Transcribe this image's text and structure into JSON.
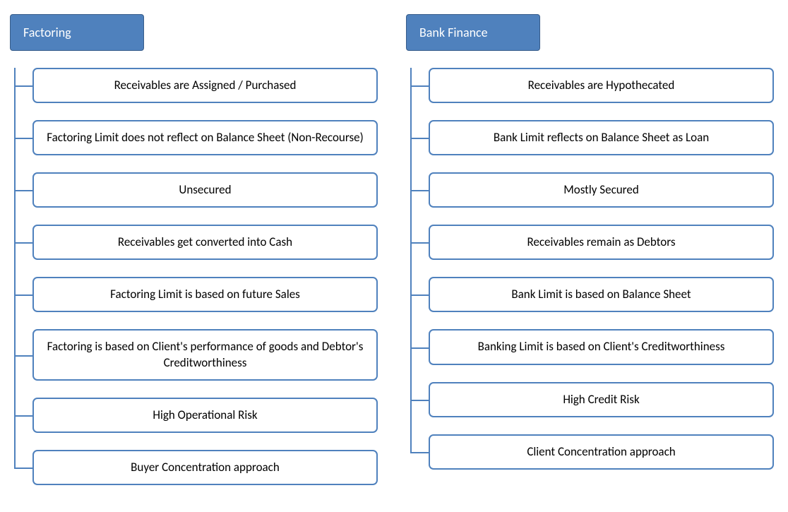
{
  "diagram": {
    "type": "comparison-tree",
    "header_color": "#4f81bd",
    "header_text_color": "#ffffff",
    "item_border_color": "#4f81bd",
    "item_bg_color": "#ffffff",
    "item_text_color": "#000000",
    "connector_color": "#4f81bd",
    "border_radius": 7,
    "font_family": "Calibri",
    "header_fontsize": 18,
    "item_fontsize": 17,
    "columns": [
      {
        "title": "Factoring",
        "items": [
          "Receivables are Assigned / Purchased",
          "Factoring Limit does not reflect on Balance Sheet (Non-Recourse)",
          "Unsecured",
          "Receivables get converted into Cash",
          "Factoring Limit is based on future Sales",
          "Factoring is based on Client's performance of goods and Debtor's Creditworthiness",
          "High Operational Risk",
          "Buyer Concentration approach"
        ]
      },
      {
        "title": "Bank Finance",
        "items": [
          "Receivables are Hypothecated",
          "Bank Limit reflects on Balance Sheet as Loan",
          "Mostly Secured",
          "Receivables remain as Debtors",
          "Bank Limit is based on Balance Sheet",
          "Banking Limit is based on Client's Creditworthiness",
          "High Credit Risk",
          "Client Concentration approach"
        ]
      }
    ]
  }
}
